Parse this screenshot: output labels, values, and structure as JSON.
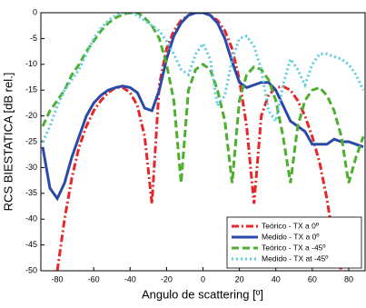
{
  "chart_data": {
    "type": "line",
    "xlabel": "Angulo de scattering [º]",
    "ylabel": "RCS BIESTATICA [dB rel.]",
    "xlim": [
      -89,
      89
    ],
    "ylim": [
      -50,
      0
    ],
    "xticks": [
      -80,
      -60,
      -40,
      -20,
      0,
      20,
      40,
      60,
      80
    ],
    "yticks": [
      0,
      -5,
      -10,
      -15,
      -20,
      -25,
      -30,
      -35,
      -40,
      -45,
      -50
    ],
    "legend": "lower-right",
    "x": [
      -88,
      -84,
      -80,
      -76,
      -72,
      -68,
      -64,
      -60,
      -56,
      -52,
      -48,
      -44,
      -40,
      -36,
      -32,
      -28,
      -24,
      -20,
      -16,
      -12,
      -8,
      -4,
      0,
      4,
      8,
      12,
      16,
      20,
      24,
      28,
      32,
      36,
      40,
      44,
      48,
      52,
      56,
      60,
      64,
      68,
      72,
      76,
      80,
      84,
      88
    ],
    "series": [
      {
        "name": "Teórico - TX a 0º",
        "color": "#e8262a",
        "style": "dashdot",
        "values": [
          null,
          null,
          -50,
          -40,
          -32,
          -26,
          -22,
          -19,
          -17,
          -15.5,
          -14.5,
          -14.5,
          -15.5,
          -18,
          -24,
          -37,
          -14,
          -7,
          -3.5,
          -1.5,
          -0.5,
          0,
          0,
          -0.5,
          -1.5,
          -3.5,
          -7,
          -13,
          -22,
          -37,
          -20,
          -16,
          -14.5,
          -14.3,
          -15,
          -17,
          -20,
          -24,
          -29,
          -36,
          -45,
          -50,
          null,
          null,
          null
        ]
      },
      {
        "name": "Medido - TX a 0º",
        "color": "#2b4aa8",
        "style": "solid",
        "values": [
          -26,
          -34,
          -36,
          -33,
          -28,
          -24,
          -20,
          -17.5,
          -16,
          -15,
          -14.5,
          -14.2,
          -14.5,
          -15.5,
          -18.5,
          -19,
          -15,
          -9,
          -4.5,
          -2,
          -0.5,
          0,
          0,
          -0.5,
          -2,
          -5,
          -9.5,
          -13.5,
          -14.5,
          -14,
          -13.5,
          -13.5,
          -15,
          -18,
          -21,
          -22,
          -23,
          -25.5,
          -25.5,
          -25.5,
          -24.5,
          -25,
          -25,
          -25.5,
          -26
        ]
      },
      {
        "name": "Teórico - TX a -45º",
        "color": "#4caf2e",
        "style": "dashed",
        "values": [
          -22,
          -19,
          -17,
          -15,
          -12,
          -10,
          -7.5,
          -5.5,
          -3.5,
          -2,
          -1,
          -0.3,
          0,
          0,
          -1,
          -2.5,
          -5,
          -10,
          -17,
          -33,
          -15,
          -11,
          -10,
          -11,
          -15,
          -21,
          -33,
          -17,
          -12,
          -10.5,
          -11,
          -13,
          -17,
          -24,
          -33,
          -22,
          -17,
          -15,
          -14.5,
          -16,
          -19,
          -24,
          -33,
          -28,
          -24
        ]
      },
      {
        "name": "Medido - TX at -45º",
        "color": "#5ccce0",
        "style": "dotted",
        "values": [
          -25,
          -22,
          -18,
          -15,
          -13,
          -11,
          -8,
          -5,
          -3,
          -1.5,
          -0.5,
          0,
          0,
          -0.5,
          -1.5,
          -2.5,
          -3.5,
          -5.5,
          -8,
          -11,
          -12,
          -8,
          -6,
          -9,
          -18,
          -16,
          -9,
          -5,
          -4.5,
          -6.5,
          -11,
          -19,
          -21,
          -14,
          -9,
          -11,
          -14,
          -10,
          -8,
          -8,
          -8.5,
          -9,
          -10,
          -12,
          -15
        ]
      }
    ]
  }
}
